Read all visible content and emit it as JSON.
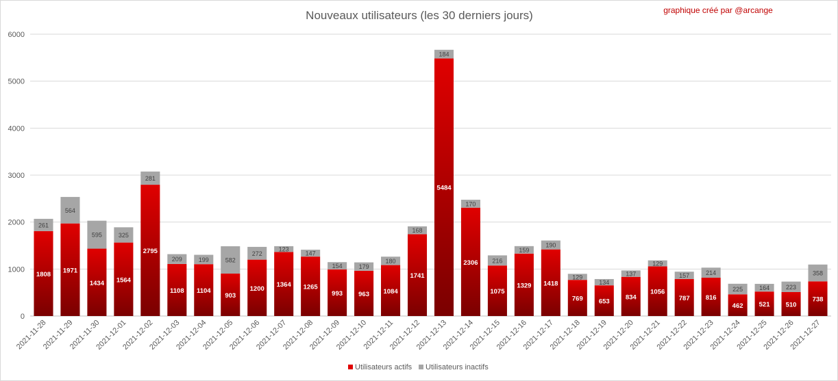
{
  "chart_data": {
    "type": "bar",
    "stacked": true,
    "title": "Nouveaux utilisateurs  (les 30 derniers  jours)",
    "credit": "graphique créé par @arcange",
    "ylim": [
      0,
      6000
    ],
    "yticks": [
      0,
      1000,
      2000,
      3000,
      4000,
      5000,
      6000
    ],
    "grid": true,
    "legend_position": "bottom",
    "categories": [
      "2021-11-28",
      "2021-11-29",
      "2021-11-30",
      "2021-12-01",
      "2021-12-02",
      "2021-12-03",
      "2021-12-04",
      "2021-12-05",
      "2021-12-06",
      "2021-12-07",
      "2021-12-08",
      "2021-12-09",
      "2021-12-10",
      "2021-12-11",
      "2021-12-12",
      "2021-12-13",
      "2021-12-14",
      "2021-12-15",
      "2021-12-16",
      "2021-12-17",
      "2021-12-18",
      "2021-12-19",
      "2021-12-20",
      "2021-12-21",
      "2021-12-22",
      "2021-12-23",
      "2021-12-24",
      "2021-12-25",
      "2021-12-26",
      "2021-12-27"
    ],
    "series": [
      {
        "name": "Utilisateurs actifs",
        "color_top": "#e00000",
        "color_bottom": "#7a0000",
        "values": [
          1808,
          1971,
          1434,
          1564,
          2795,
          1108,
          1104,
          903,
          1200,
          1364,
          1265,
          993,
          963,
          1084,
          1741,
          5484,
          2306,
          1075,
          1329,
          1418,
          769,
          653,
          834,
          1056,
          787,
          816,
          462,
          521,
          510,
          738
        ]
      },
      {
        "name": "Utilisateurs inactifs",
        "color": "#a6a6a6",
        "values": [
          261,
          564,
          595,
          325,
          281,
          209,
          199,
          582,
          272,
          123,
          147,
          154,
          179,
          180,
          168,
          184,
          170,
          216,
          159,
          190,
          129,
          134,
          137,
          129,
          157,
          214,
          225,
          164,
          223,
          358
        ]
      }
    ]
  }
}
